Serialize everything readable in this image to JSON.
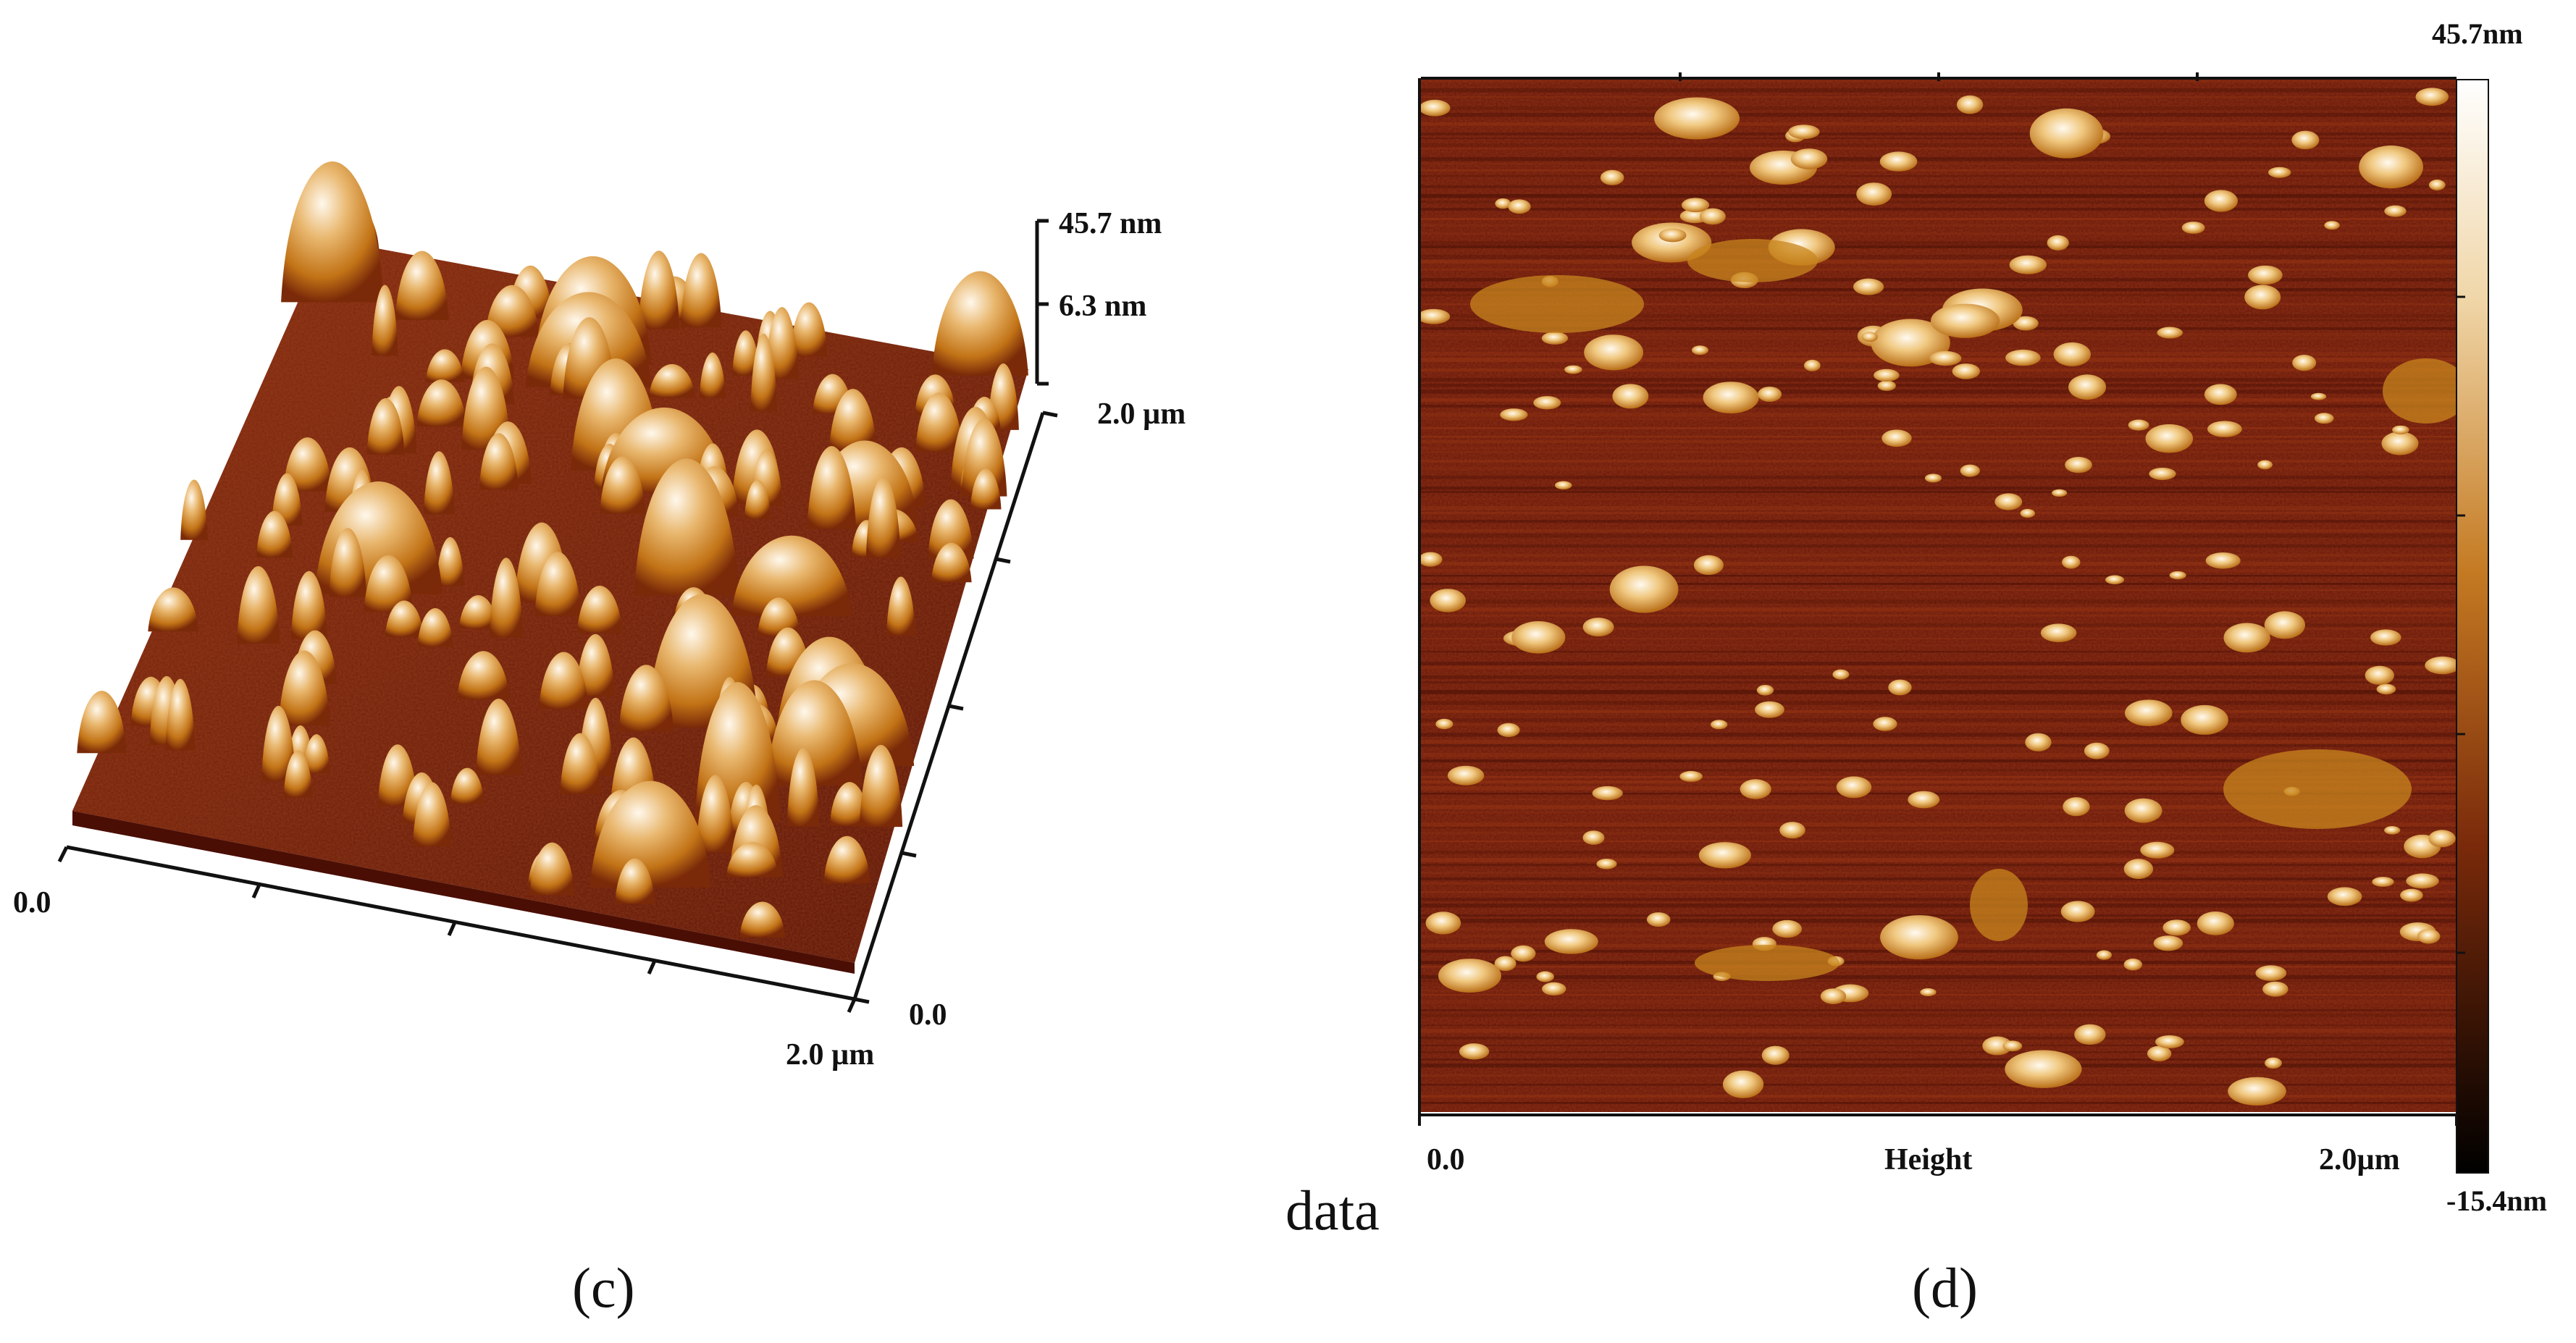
{
  "panel_c": {
    "caption": "(c)",
    "z_max_label": "45.7 nm",
    "z_mid_label": "6.3 nm",
    "y_max_label": "2.0 µm",
    "x_origin_label": "0.0",
    "y_origin_label": "0.0",
    "x_max_label": "2.0 µm"
  },
  "panel_d": {
    "caption": "(d)",
    "x_origin_label": "0.0",
    "channel_label": "Height",
    "x_max_label": "2.0µm",
    "scale_max_label": "45.7nm",
    "scale_min_label": "-15.4nm"
  },
  "stray_text": "data",
  "colors": {
    "afm_dark": "#1a0400",
    "afm_base": "#6b1608",
    "afm_mid": "#b8620f",
    "afm_high": "#e8b060",
    "afm_peak": "#fff6e6"
  }
}
